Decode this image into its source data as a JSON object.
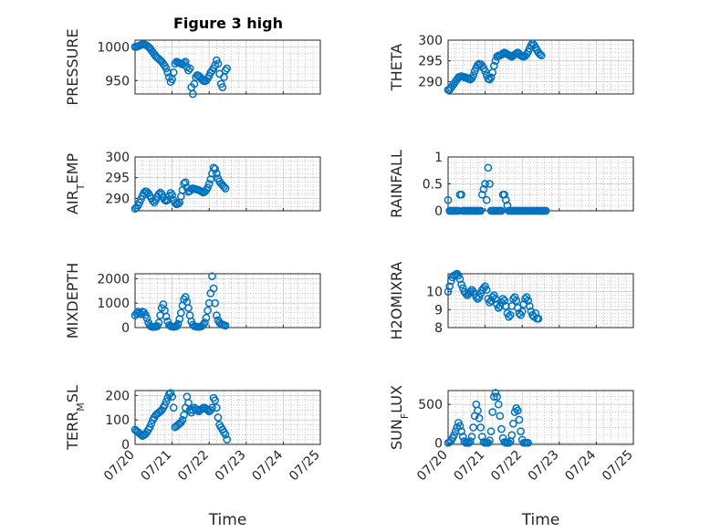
{
  "figure": {
    "title": "Figure 3 high",
    "marker_color": "#0072bd"
  },
  "chart_data": [
    {
      "type": "scatter",
      "ylabel": "PRESSURE",
      "ylim": [
        930,
        1010
      ],
      "yticks": [
        950,
        1000
      ],
      "xlim": [
        0,
        5
      ],
      "xticklabels": [],
      "grid": true,
      "x_start": 0,
      "x_step": 0.04,
      "y": [
        1000,
        1000,
        1001,
        1002,
        1003,
        1004,
        1004,
        1003,
        1002,
        1000,
        998,
        995,
        992,
        989,
        986,
        984,
        982,
        980,
        978,
        975,
        972,
        968,
        962,
        955,
        948,
        952,
        962,
        975,
        978,
        977,
        976,
        975,
        974,
        976,
        978,
        970,
        965,
        968,
        940,
        930,
        945,
        955,
        958,
        957,
        955,
        952,
        950,
        949,
        950,
        953,
        957,
        962,
        965,
        968,
        973,
        980,
        975,
        960,
        945,
        940,
        955,
        965,
        968
      ]
    },
    {
      "type": "scatter",
      "ylabel": "THETA",
      "ylim": [
        287,
        300
      ],
      "yticks": [
        290,
        295,
        300
      ],
      "xlim": [
        0,
        5
      ],
      "xticklabels": [],
      "grid": true,
      "x_start": 0,
      "x_step": 0.04,
      "y": [
        288,
        288,
        288.5,
        289,
        289.5,
        290,
        290.5,
        291,
        291.2,
        291.3,
        291.2,
        291,
        291,
        290.8,
        290.6,
        290.5,
        290.8,
        291.5,
        292.5,
        293.3,
        294,
        294.3,
        294.2,
        293.8,
        293.2,
        292.5,
        291.5,
        290.7,
        290.5,
        291,
        292.2,
        293.8,
        295,
        296,
        296.3,
        296.3,
        296.5,
        296.8,
        297,
        296.8,
        296.6,
        296.4,
        296.2,
        296,
        296.3,
        296.5,
        296.8,
        297,
        296.7,
        296.3,
        296.1,
        296,
        296.2,
        296.6,
        297.2,
        298,
        298.8,
        299.2,
        298.8,
        298.2,
        297.6,
        297,
        296.6,
        296.3
      ]
    },
    {
      "type": "scatter",
      "ylabel": "AIR_TEMP",
      "ylim": [
        287,
        300
      ],
      "yticks": [
        290,
        295,
        300
      ],
      "xlim": [
        0,
        5
      ],
      "xticklabels": [],
      "grid": true,
      "x_start": 0,
      "x_step": 0.04,
      "y": [
        287.5,
        287.8,
        288.3,
        289,
        289.8,
        290.6,
        291.3,
        291.7,
        291.6,
        291.2,
        290.6,
        290,
        289.4,
        289,
        289.6,
        290.4,
        291,
        291.4,
        291,
        290.2,
        289.6,
        289.4,
        289.6,
        290.6,
        291.3,
        290.8,
        289.6,
        288.9,
        288.6,
        288.7,
        289,
        290.5,
        292,
        293.6,
        293.9,
        292.6,
        291.6,
        291.8,
        292.3,
        292.4,
        292.3,
        292.2,
        292.1,
        292,
        291.8,
        291.6,
        291.4,
        291.6,
        292,
        292.6,
        293.5,
        294.6,
        296,
        297.4,
        297.1,
        296,
        294.8,
        294.1,
        293.6,
        293.2,
        292.8,
        292.4
      ]
    },
    {
      "type": "scatter",
      "ylabel": "RAINFALL",
      "ylim": [
        0,
        1
      ],
      "yticks": [
        0,
        0.5,
        1
      ],
      "xlim": [
        0,
        5
      ],
      "xticklabels": [],
      "grid": true,
      "x_start": 0,
      "x_step": 0.04,
      "y": [
        0.2,
        0,
        0,
        0,
        0,
        0,
        0,
        0,
        0.3,
        0.3,
        0,
        0,
        0,
        0,
        0,
        0,
        0,
        0,
        0,
        0,
        0,
        0,
        0,
        0.3,
        0.4,
        0.5,
        0.2,
        0.8,
        0.5,
        0,
        0,
        0,
        0,
        0,
        0,
        0,
        0,
        0.3,
        0.3,
        0.2,
        0.1,
        0,
        0,
        0,
        0,
        0,
        0,
        0,
        0,
        0,
        0,
        0,
        0,
        0,
        0,
        0,
        0,
        0,
        0,
        0,
        0,
        0,
        0,
        0,
        0,
        0,
        0
      ]
    },
    {
      "type": "scatter",
      "ylabel": "MIXDEPTH",
      "ylim": [
        0,
        2200
      ],
      "yticks": [
        0,
        1000,
        2000
      ],
      "xlim": [
        0,
        5
      ],
      "xticklabels": [],
      "grid": true,
      "x_start": 0,
      "x_step": 0.04,
      "y": [
        500,
        580,
        650,
        600,
        550,
        650,
        620,
        520,
        380,
        200,
        80,
        40,
        30,
        30,
        40,
        60,
        200,
        500,
        800,
        950,
        700,
        450,
        250,
        100,
        60,
        40,
        30,
        40,
        60,
        150,
        350,
        600,
        900,
        1150,
        1250,
        1050,
        800,
        500,
        250,
        120,
        60,
        40,
        30,
        30,
        40,
        60,
        120,
        200,
        400,
        700,
        1000,
        1400,
        2100,
        1600,
        1000,
        500,
        300,
        200,
        150,
        120,
        100,
        80
      ]
    },
    {
      "type": "scatter",
      "ylabel": "H2OMIXRA",
      "ylim": [
        8,
        11
      ],
      "yticks": [
        8,
        9,
        10
      ],
      "xlim": [
        0,
        5
      ],
      "xticklabels": [],
      "grid": true,
      "x_start": 0,
      "x_step": 0.04,
      "y": [
        10,
        10.3,
        10.6,
        10.8,
        10.9,
        10.95,
        11,
        10.9,
        10.7,
        10.4,
        10.2,
        10,
        9.9,
        9.8,
        9.9,
        10,
        10.1,
        10,
        9.9,
        9.7,
        9.6,
        9.7,
        9.9,
        10.1,
        10.2,
        10.3,
        10.1,
        9.6,
        9.4,
        9.5,
        9.7,
        9.8,
        9.6,
        9.3,
        9.1,
        9.2,
        9.4,
        9.6,
        9.5,
        9.2,
        8.8,
        8.6,
        8.7,
        9.2,
        9.6,
        9.7,
        9.5,
        9.1,
        8.8,
        8.7,
        8.9,
        9.3,
        9.6,
        9.7,
        9.5,
        9.2,
        8.9,
        8.7,
        8.6,
        8.8,
        8.5,
        8.5
      ]
    },
    {
      "type": "scatter",
      "ylabel": "TERR_MSL",
      "ylim": [
        0,
        220
      ],
      "yticks": [
        0,
        100,
        200
      ],
      "xlim": [
        0,
        5
      ],
      "xticklabels": [
        "07/20",
        "07/21",
        "07/22",
        "07/23",
        "07/24",
        "07/25"
      ],
      "xlabel": "Time",
      "grid": true,
      "x_start": 0,
      "x_step": 0.04,
      "y": [
        60,
        55,
        50,
        45,
        40,
        35,
        38,
        42,
        50,
        60,
        70,
        85,
        100,
        110,
        120,
        125,
        130,
        135,
        140,
        150,
        160,
        175,
        190,
        205,
        210,
        195,
        150,
        70,
        75,
        80,
        85,
        90,
        100,
        120,
        150,
        195,
        170,
        140,
        130,
        140,
        150,
        145,
        140,
        135,
        140,
        145,
        150,
        150,
        145,
        140,
        135,
        140,
        150,
        190,
        180,
        150,
        110,
        80,
        70,
        60,
        50,
        40,
        20
      ]
    },
    {
      "type": "scatter",
      "ylabel": "SUN_FLUX",
      "ylim": [
        -20,
        680
      ],
      "yticks": [
        0,
        500
      ],
      "xlim": [
        0,
        5
      ],
      "xticklabels": [
        "07/20",
        "07/21",
        "07/22",
        "07/23",
        "07/24",
        "07/25"
      ],
      "xlabel": "Time",
      "grid": true,
      "x_start": 0,
      "x_step": 0.04,
      "y": [
        0,
        10,
        30,
        60,
        100,
        150,
        200,
        260,
        220,
        150,
        80,
        20,
        0,
        0,
        0,
        20,
        80,
        200,
        350,
        500,
        420,
        320,
        200,
        80,
        10,
        0,
        0,
        0,
        30,
        150,
        400,
        600,
        650,
        600,
        500,
        350,
        180,
        60,
        10,
        0,
        0,
        0,
        20,
        100,
        250,
        400,
        450,
        420,
        300,
        150,
        40,
        0,
        0,
        0,
        0
      ]
    }
  ]
}
